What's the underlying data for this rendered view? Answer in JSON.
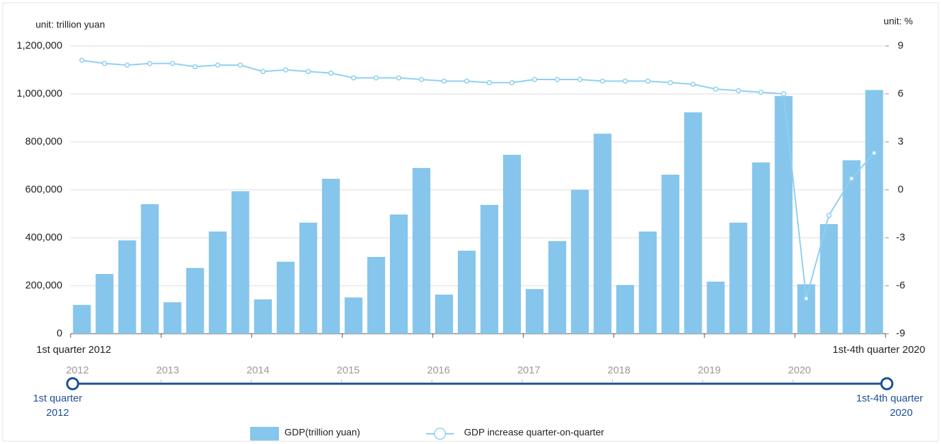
{
  "chart_data": {
    "type": "bar",
    "y_unit_label": "unit: trillion yuan",
    "y2_unit_label": "unit: %",
    "categories": [
      "1st quarter 2012",
      null,
      null,
      null,
      null,
      null,
      null,
      null,
      null,
      null,
      null,
      null,
      null,
      null,
      null,
      null,
      null,
      null,
      null,
      null,
      null,
      null,
      null,
      null,
      null,
      null,
      null,
      null,
      null,
      null,
      null,
      null,
      null,
      null,
      null,
      "1st-4th quarter 2020"
    ],
    "series": [
      {
        "name": "GDP(trillion yuan)",
        "type": "bar",
        "color": "#86c5ec",
        "values": [
          120000,
          249000,
          389000,
          540000,
          131000,
          274000,
          426000,
          594000,
          143000,
          300000,
          463000,
          646000,
          151000,
          320000,
          497000,
          691000,
          163000,
          346000,
          537000,
          746000,
          186000,
          386000,
          600000,
          834000,
          203000,
          426000,
          663000,
          923000,
          217000,
          463000,
          714000,
          991000,
          206000,
          457000,
          723000,
          1016000
        ]
      },
      {
        "name": "GDP increase quarter-on-quarter",
        "type": "line",
        "axis": "y2",
        "color": "#8fd0f0",
        "values": [
          8.1,
          7.9,
          7.8,
          7.9,
          7.9,
          7.7,
          7.8,
          7.8,
          7.4,
          7.5,
          7.4,
          7.3,
          7.0,
          7.0,
          7.0,
          6.9,
          6.8,
          6.8,
          6.7,
          6.7,
          6.9,
          6.9,
          6.9,
          6.8,
          6.8,
          6.8,
          6.7,
          6.6,
          6.3,
          6.2,
          6.1,
          6.0,
          -6.8,
          -1.6,
          0.7,
          2.3
        ]
      }
    ],
    "ylim": [
      0,
      1200000
    ],
    "yticks": [
      0,
      {
        "value": 200000,
        "label": "200,000"
      },
      {
        "value": 400000,
        "label": "400,000"
      },
      {
        "value": 600000,
        "label": "600,000"
      },
      {
        "value": 800000,
        "label": "800,000"
      },
      {
        "value": 1000000,
        "label": "1,000,000"
      },
      {
        "value": 1200000,
        "label": "1,200,000"
      }
    ],
    "y2lim": [
      -9,
      9
    ],
    "y2ticks": [
      -9,
      -6,
      -3,
      0,
      3,
      6,
      9
    ],
    "grid": true,
    "legend": "bottom",
    "timeline": {
      "years": [
        2012,
        2013,
        2014,
        2015,
        2016,
        2017,
        2018,
        2019,
        2020
      ],
      "start_label": [
        "1st quarter",
        "2012"
      ],
      "end_label": [
        "1st-4th quarter",
        "2020"
      ]
    }
  }
}
